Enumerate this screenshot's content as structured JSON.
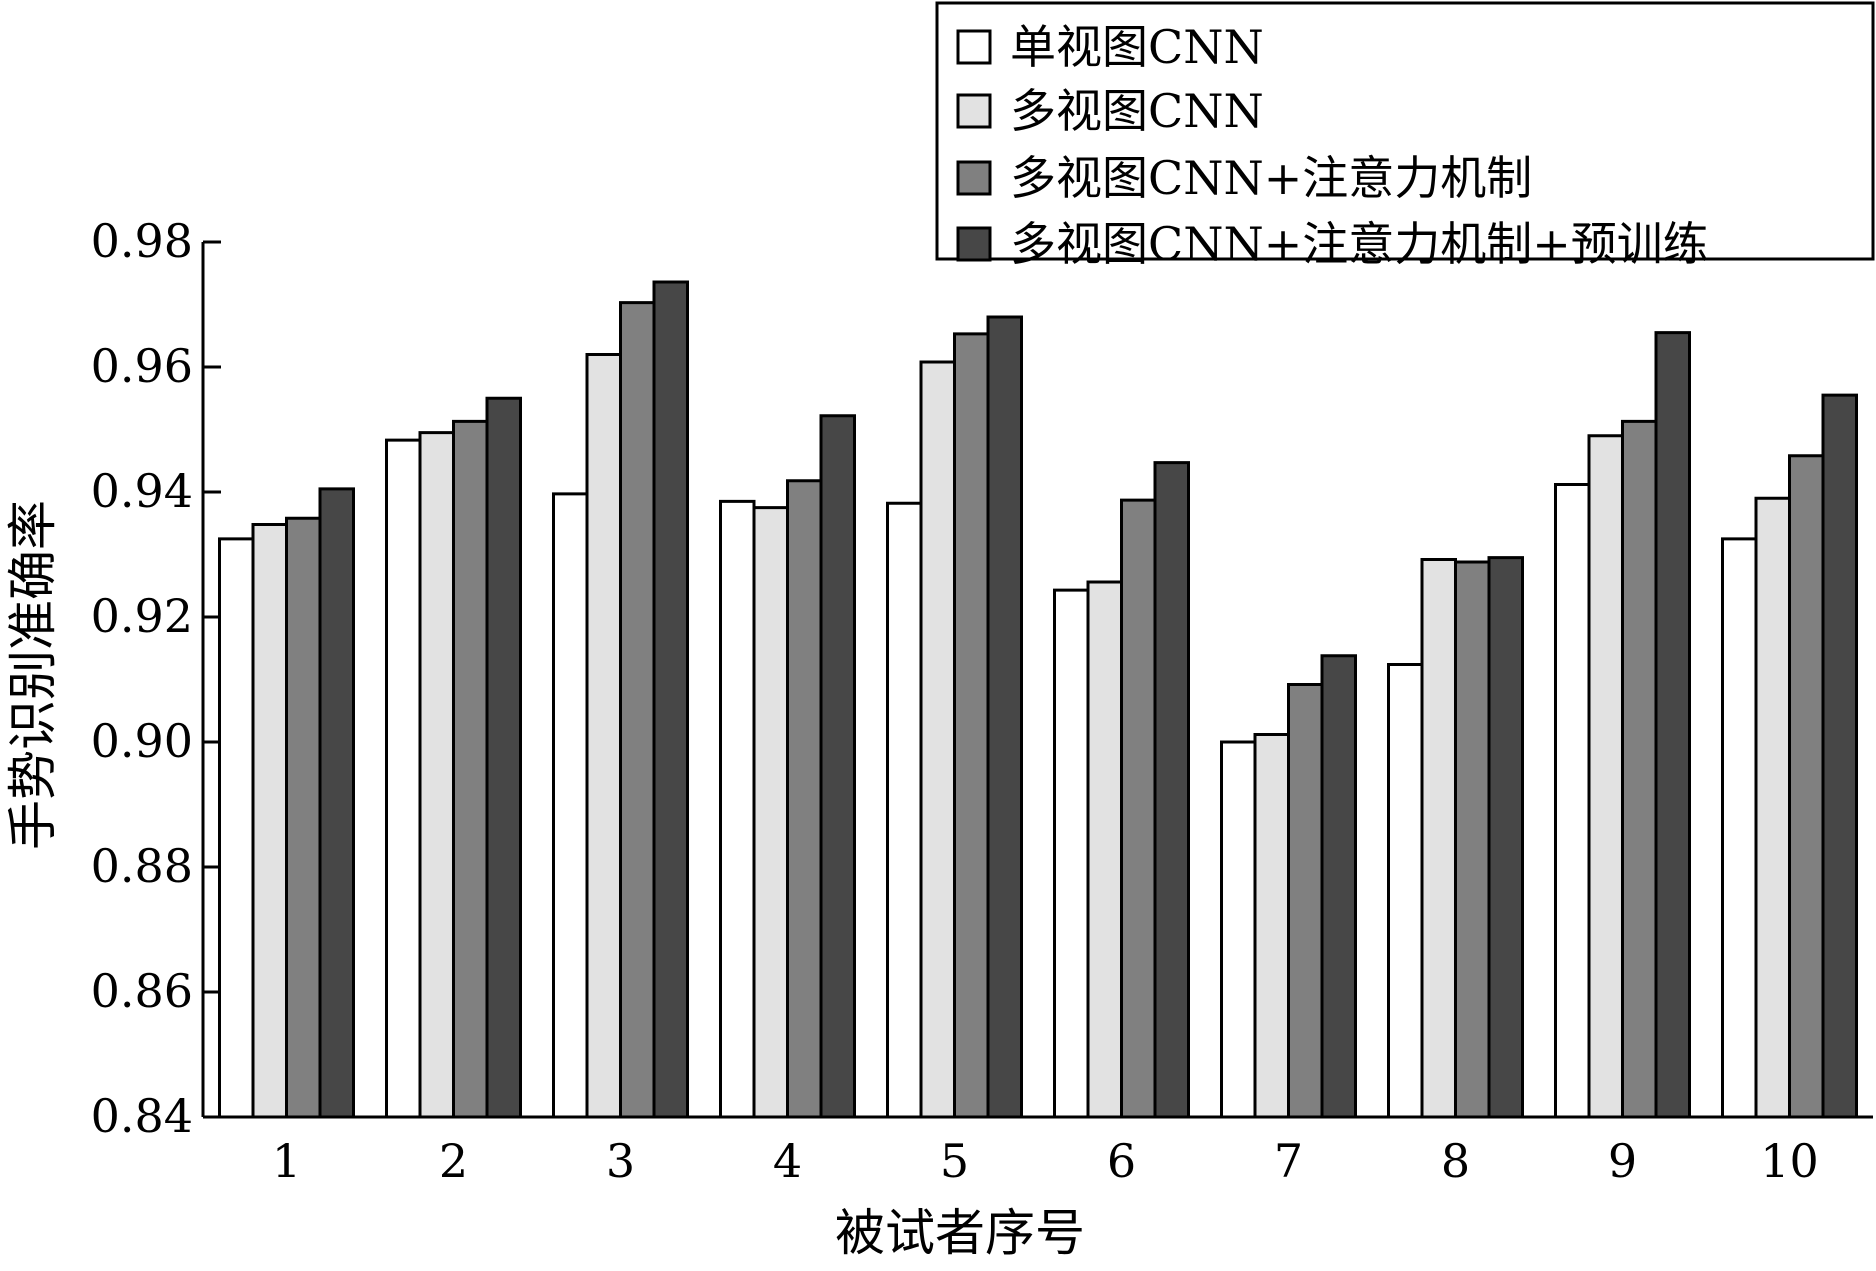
{
  "chart_data": {
    "type": "bar",
    "title": "",
    "xlabel": "被试者序号",
    "ylabel": "手势识别准确率",
    "ylim": [
      0.84,
      0.98
    ],
    "yticks": [
      "0.84",
      "0.86",
      "0.88",
      "0.90",
      "0.92",
      "0.94",
      "0.96",
      "0.98"
    ],
    "categories": [
      "1",
      "2",
      "3",
      "4",
      "5",
      "6",
      "7",
      "8",
      "9",
      "10"
    ],
    "grid": false,
    "legend_position": "top-right",
    "series": [
      {
        "name": "单视图CNN",
        "color": "#ffffff",
        "values": [
          0.9325,
          0.9483,
          0.9397,
          0.9385,
          0.9382,
          0.9243,
          0.9,
          0.9124,
          0.9412,
          0.9325
        ]
      },
      {
        "name": "多视图CNN",
        "color": "#e2e2e2",
        "values": [
          0.9348,
          0.9495,
          0.962,
          0.9375,
          0.9608,
          0.9256,
          0.9012,
          0.9292,
          0.949,
          0.939
        ]
      },
      {
        "name": "多视图CNN+注意力机制",
        "color": "#808080",
        "values": [
          0.9358,
          0.9513,
          0.9703,
          0.9418,
          0.9653,
          0.9387,
          0.9092,
          0.9288,
          0.9513,
          0.9458
        ]
      },
      {
        "name": "多视图CNN+注意力机制+预训练",
        "color": "#474747",
        "values": [
          0.9405,
          0.955,
          0.9736,
          0.9522,
          0.968,
          0.9447,
          0.9138,
          0.9295,
          0.9655,
          0.9555
        ]
      }
    ]
  }
}
